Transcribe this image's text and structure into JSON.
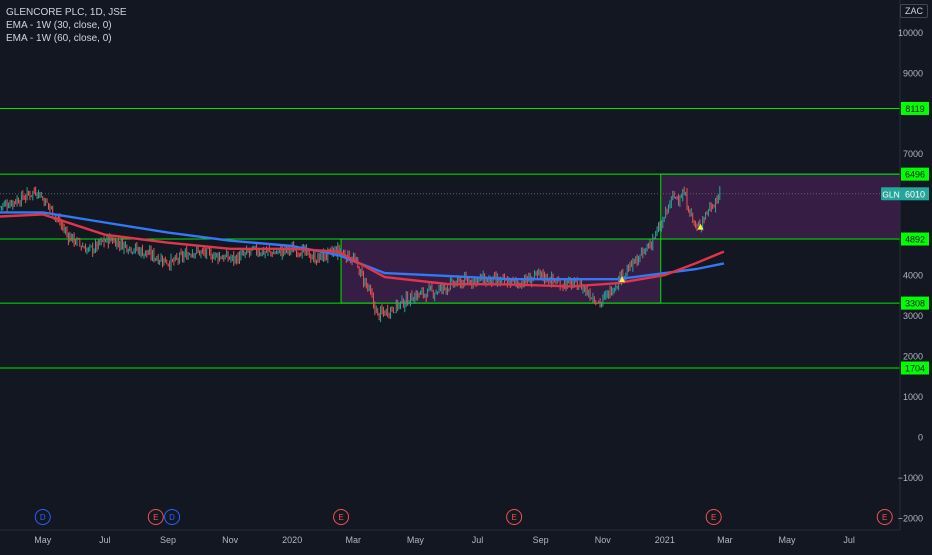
{
  "legend": {
    "title": "GLENCORE PLC, 1D, JSE",
    "ema1": "EMA - 1W (30, close, 0)",
    "ema2": "EMA - 1W (60, close, 0)"
  },
  "currency_label": "ZAC",
  "colors": {
    "background": "#131722",
    "level_line": "#00e600",
    "level_label_bg": "#00ff00",
    "zone_fill": "#3d1f4a",
    "ema30": "#3179f5",
    "ema60": "#e0354a",
    "candle_up": "#26a69a",
    "candle_down": "#ef5350",
    "price_label_bg": "#26a69a",
    "triangle": "#ffeb3b",
    "earnings_circle": "#ef5350",
    "dividend_circle": "#2962ff"
  },
  "chart_data": {
    "type": "candlestick",
    "title": "GLENCORE PLC, 1D, JSE",
    "symbol": "GLN",
    "last_price": 6010,
    "y_axis": {
      "range": [
        -2300,
        10800
      ],
      "ticks": [
        10000,
        9000,
        7000,
        4000,
        3000,
        2000,
        1000,
        0,
        -1000,
        -2000
      ],
      "tick_labels": [
        "10000",
        "9000",
        "7000",
        "4000",
        "3000",
        "2000",
        "1000",
        "0",
        "−1000",
        "−2000"
      ]
    },
    "x_axis": {
      "tick_labels": [
        "May",
        "Jul",
        "Sep",
        "Nov",
        "2020",
        "Mar",
        "May",
        "Jul",
        "Sep",
        "Nov",
        "2021",
        "Mar",
        "May",
        "Jul"
      ],
      "tick_dates": [
        "2019-05-01",
        "2019-07-01",
        "2019-09-01",
        "2019-11-01",
        "2020-01-01",
        "2020-03-01",
        "2020-05-01",
        "2020-07-01",
        "2020-09-01",
        "2020-11-01",
        "2021-01-01",
        "2021-03-01",
        "2021-05-01",
        "2021-07-01"
      ],
      "range": [
        "2019-03-20",
        "2021-08-20"
      ]
    },
    "horizontal_levels": [
      8119,
      6496,
      4892,
      3308,
      1704
    ],
    "level_labels": [
      "8119",
      "6496",
      "4892",
      "3308",
      "1704"
    ],
    "zones": [
      {
        "start": "2020-02-18",
        "end": "2020-12-28",
        "low": 3308,
        "high": 4892
      },
      {
        "start": "2020-12-28",
        "end": "2021-08-20",
        "low": 4892,
        "high": 6496
      }
    ],
    "price_series": {
      "name": "GLN",
      "dates": [
        "2019-03-20",
        "2019-04-10",
        "2019-04-25",
        "2019-05-10",
        "2019-05-25",
        "2019-06-15",
        "2019-07-05",
        "2019-07-25",
        "2019-08-15",
        "2019-09-05",
        "2019-09-25",
        "2019-10-15",
        "2019-11-05",
        "2019-11-25",
        "2019-12-15",
        "2020-01-05",
        "2020-01-25",
        "2020-02-15",
        "2020-03-01",
        "2020-03-15",
        "2020-03-25",
        "2020-04-10",
        "2020-05-01",
        "2020-05-20",
        "2020-06-10",
        "2020-07-01",
        "2020-07-20",
        "2020-08-10",
        "2020-09-01",
        "2020-09-20",
        "2020-10-10",
        "2020-10-30",
        "2020-11-20",
        "2020-12-10",
        "2020-12-28",
        "2021-01-08",
        "2021-01-20",
        "2021-02-01",
        "2021-02-12",
        "2021-02-25"
      ],
      "close": [
        5700,
        5900,
        6100,
        5600,
        5000,
        4600,
        4900,
        4700,
        4500,
        4300,
        4600,
        4500,
        4400,
        4600,
        4550,
        4650,
        4400,
        4600,
        4400,
        3700,
        3000,
        3200,
        3500,
        3600,
        3800,
        3900,
        3850,
        3800,
        4000,
        3800,
        3750,
        3300,
        4000,
        4500,
        5200,
        5900,
        6000,
        5100,
        5600,
        6010
      ]
    },
    "series": [
      {
        "name": "EMA - 1W (30, close, 0)",
        "dates": [
          "2019-03-20",
          "2019-05-01",
          "2019-07-01",
          "2019-09-01",
          "2019-11-01",
          "2020-01-01",
          "2020-02-15",
          "2020-04-01",
          "2020-06-01",
          "2020-08-01",
          "2020-10-01",
          "2020-11-15",
          "2021-01-01",
          "2021-02-01",
          "2021-02-28"
        ],
        "values": [
          5550,
          5550,
          5300,
          5050,
          4850,
          4720,
          4500,
          4050,
          3980,
          3900,
          3900,
          3900,
          4050,
          4150,
          4290
        ]
      },
      {
        "name": "EMA - 1W (60, close, 0)",
        "dates": [
          "2019-03-20",
          "2019-05-01",
          "2019-07-01",
          "2019-09-01",
          "2019-11-01",
          "2020-01-01",
          "2020-02-15",
          "2020-04-01",
          "2020-06-01",
          "2020-08-01",
          "2020-10-01",
          "2020-11-15",
          "2021-01-01",
          "2021-02-01",
          "2021-02-28"
        ],
        "values": [
          5450,
          5500,
          5000,
          4800,
          4650,
          4650,
          4580,
          3950,
          3780,
          3770,
          3720,
          3800,
          4000,
          4300,
          4580
        ]
      }
    ],
    "events": [
      {
        "label": "D",
        "date": "2019-05-01",
        "kind": "dividend"
      },
      {
        "label": "E",
        "date": "2019-08-20",
        "kind": "earnings"
      },
      {
        "label": "D",
        "date": "2019-09-05",
        "kind": "dividend"
      },
      {
        "label": "E",
        "date": "2020-02-18",
        "kind": "earnings"
      },
      {
        "label": "E",
        "date": "2020-08-06",
        "kind": "earnings"
      },
      {
        "label": "E",
        "date": "2021-02-18",
        "kind": "earnings"
      },
      {
        "label": "E",
        "date": "2021-08-05",
        "kind": "earnings"
      }
    ],
    "signals": [
      {
        "date": "2020-11-20",
        "value": 3900
      },
      {
        "date": "2021-02-05",
        "value": 5200
      }
    ],
    "grid": false,
    "legend_position": "top-left"
  }
}
